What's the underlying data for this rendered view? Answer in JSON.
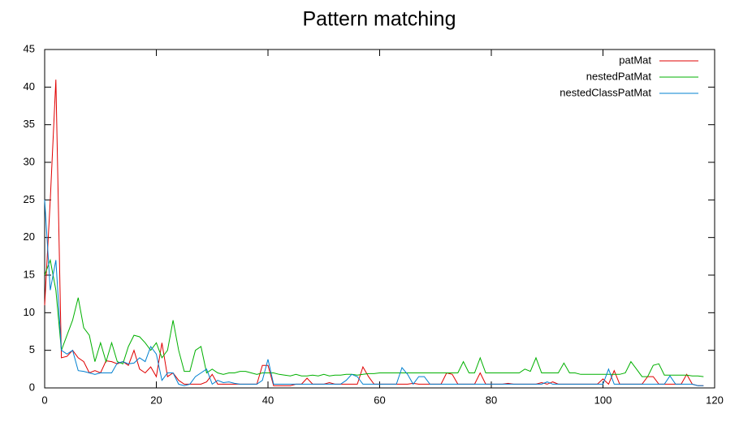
{
  "chart_data": {
    "type": "line",
    "title": "Pattern matching",
    "x": [
      0,
      1,
      2,
      3,
      4,
      5,
      6,
      7,
      8,
      9,
      10,
      11,
      12,
      13,
      14,
      15,
      16,
      17,
      18,
      19,
      20,
      21,
      22,
      23,
      24,
      25,
      26,
      27,
      28,
      29,
      30,
      31,
      32,
      33,
      34,
      35,
      36,
      37,
      38,
      39,
      40,
      41,
      42,
      43,
      44,
      45,
      46,
      47,
      48,
      49,
      50,
      51,
      52,
      53,
      54,
      55,
      56,
      57,
      58,
      59,
      60,
      61,
      62,
      63,
      64,
      65,
      66,
      67,
      68,
      69,
      70,
      71,
      72,
      73,
      74,
      75,
      76,
      77,
      78,
      79,
      80,
      81,
      82,
      83,
      84,
      85,
      86,
      87,
      88,
      89,
      90,
      91,
      92,
      93,
      94,
      95,
      96,
      97,
      98,
      99,
      100,
      101,
      102,
      103,
      104,
      105,
      106,
      107,
      108,
      109,
      110,
      111,
      112,
      113,
      114,
      115,
      116,
      117,
      118
    ],
    "series": [
      {
        "name": "patMat",
        "color": "#e00000",
        "values": [
          11,
          25,
          41,
          4,
          4.2,
          5,
          4,
          3.5,
          2,
          2.3,
          2,
          3.6,
          3.5,
          3.2,
          3.5,
          3,
          5,
          2.5,
          2,
          2.8,
          1.5,
          6,
          1.5,
          2,
          1,
          0.5,
          0.5,
          0.5,
          0.5,
          0.8,
          1.8,
          0.5,
          0.5,
          0.5,
          0.5,
          0.5,
          0.5,
          0.5,
          0.5,
          3,
          3,
          0.3,
          0.3,
          0.3,
          0.3,
          0.5,
          0.5,
          1.3,
          0.5,
          0.5,
          0.5,
          0.7,
          0.5,
          0.5,
          0.5,
          0.5,
          0.5,
          2.8,
          1.5,
          0.5,
          0.5,
          0.5,
          0.5,
          0.5,
          0.5,
          0.5,
          0.6,
          0.5,
          0.5,
          0.5,
          0.5,
          0.5,
          2,
          1.8,
          0.5,
          0.5,
          0.5,
          0.5,
          2,
          0.5,
          0.5,
          0.5,
          0.5,
          0.6,
          0.5,
          0.5,
          0.5,
          0.5,
          0.5,
          0.7,
          0.5,
          0.8,
          0.5,
          0.5,
          0.5,
          0.5,
          0.5,
          0.5,
          0.5,
          0.5,
          1.2,
          0.5,
          2.3,
          0.5,
          0.5,
          0.5,
          0.5,
          0.5,
          1.5,
          1.5,
          0.5,
          0.5,
          0.5,
          0.5,
          0.5,
          1.8,
          0.5,
          0.3,
          0.3
        ]
      },
      {
        "name": "nestedPatMat",
        "color": "#00b000",
        "values": [
          15,
          17,
          13,
          5,
          7,
          9,
          12,
          8,
          7,
          3.5,
          6,
          3.5,
          6,
          3.5,
          3.2,
          5.5,
          7,
          6.8,
          6,
          5,
          6,
          4,
          5,
          9,
          5,
          2.2,
          2.2,
          5,
          5.5,
          2,
          2.5,
          2,
          1.8,
          2,
          2,
          2.2,
          2.2,
          2,
          1.8,
          2,
          2,
          2,
          1.8,
          1.7,
          1.6,
          1.8,
          1.6,
          1.6,
          1.7,
          1.6,
          1.8,
          1.6,
          1.7,
          1.7,
          1.8,
          1.8,
          1.7,
          1.8,
          1.9,
          1.9,
          2,
          2,
          2,
          2,
          2,
          2,
          2,
          2,
          2,
          2,
          2,
          2,
          2,
          2,
          2,
          3.5,
          2,
          2,
          4,
          2,
          2,
          2,
          2,
          2,
          2,
          2,
          2.5,
          2.2,
          4,
          2,
          2,
          2,
          2,
          3.3,
          2,
          2,
          1.8,
          1.8,
          1.8,
          1.8,
          1.8,
          1.8,
          1.8,
          1.8,
          2,
          3.5,
          2.5,
          1.5,
          1.5,
          3,
          3.2,
          1.7,
          1.7,
          1.7,
          1.7,
          1.7,
          1.6,
          1.6,
          1.5
        ]
      },
      {
        "name": "nestedClassPatMat",
        "color": "#0080d0",
        "values": [
          25,
          13,
          17,
          5,
          4.5,
          5,
          2.3,
          2.2,
          2,
          1.8,
          2,
          2,
          2,
          3.3,
          3.5,
          3.2,
          3.3,
          4,
          3.5,
          5.5,
          4.5,
          1,
          2,
          2,
          0.5,
          0.3,
          0.5,
          1.5,
          2,
          2.5,
          0.5,
          1,
          0.7,
          0.8,
          0.6,
          0.5,
          0.5,
          0.5,
          0.5,
          1,
          3.8,
          0.5,
          0.5,
          0.5,
          0.5,
          0.5,
          0.5,
          0.5,
          0.5,
          0.5,
          0.5,
          0.5,
          0.5,
          0.5,
          1,
          1.8,
          1.5,
          0.5,
          0.5,
          0.5,
          0.5,
          0.5,
          0.5,
          0.5,
          2.7,
          1.8,
          0.5,
          1.5,
          1.5,
          0.5,
          0.5,
          0.5,
          0.5,
          0.5,
          0.5,
          0.5,
          0.5,
          0.5,
          0.5,
          0.5,
          0.5,
          0.5,
          0.5,
          0.5,
          0.5,
          0.5,
          0.5,
          0.5,
          0.5,
          0.5,
          0.8,
          0.5,
          0.5,
          0.5,
          0.5,
          0.5,
          0.5,
          0.5,
          0.5,
          0.5,
          0.5,
          2.5,
          0.5,
          0.5,
          0.5,
          0.5,
          0.5,
          0.5,
          0.5,
          0.5,
          0.5,
          0.5,
          1.6,
          0.5,
          0.5,
          0.5,
          0.5,
          0.3,
          0.3
        ]
      }
    ],
    "xlim": [
      0,
      120
    ],
    "xticks": [
      0,
      20,
      40,
      60,
      80,
      100,
      120
    ],
    "ylim": [
      0,
      45
    ],
    "yticks": [
      0,
      5,
      10,
      15,
      20,
      25,
      30,
      35,
      40,
      45
    ],
    "legend": "top-right"
  }
}
